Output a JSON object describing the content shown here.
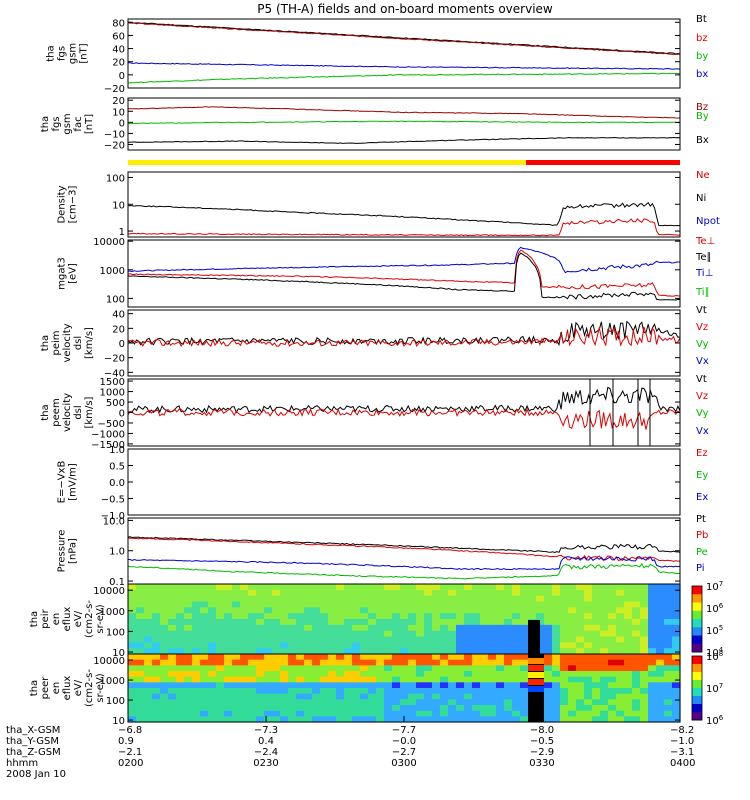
{
  "title": "P5 (TH-A) fields and on-board moments overview",
  "colors": {
    "black": "#000000",
    "red": "#dd0000",
    "blue": "#0000cc",
    "green": "#00bb00",
    "darkred": "#990000",
    "yellow": "#ffee00",
    "barred": "#ff0000"
  },
  "chart_data": [
    {
      "type": "line",
      "panel": "fgs_gsm",
      "ylabel": [
        "tha",
        "fgs",
        "gsm",
        "[nT]"
      ],
      "ylim": [
        -20,
        85
      ],
      "yticks": [
        -20,
        0,
        20,
        40,
        60,
        80
      ],
      "ytick_labels": [
        "−20",
        "0",
        "20",
        "40",
        "60",
        "80"
      ],
      "legend": [
        "Bt",
        "bz",
        "by",
        "bx"
      ],
      "series": [
        {
          "name": "Bt",
          "x": [
            0,
            1
          ],
          "y": [
            80,
            32
          ]
        },
        {
          "name": "bz",
          "x": [
            0,
            1
          ],
          "y": [
            79,
            31
          ]
        },
        {
          "name": "by",
          "x": [
            0,
            0.5,
            1
          ],
          "y": [
            18,
            12,
            9
          ]
        },
        {
          "name": "bx",
          "x": [
            0,
            0.2,
            0.5,
            1
          ],
          "y": [
            -12,
            -6,
            0,
            2
          ]
        }
      ]
    },
    {
      "type": "line",
      "panel": "fgs_gse_fac",
      "ylabel": [
        "tha",
        "fgs",
        "gsm",
        "fac",
        "[nT]"
      ],
      "ylim": [
        -25,
        22
      ],
      "yticks": [
        -20,
        -10,
        0,
        10,
        20
      ],
      "ytick_labels": [
        "−20",
        "−10",
        "0",
        "10",
        "20"
      ],
      "legend": [
        "Bz",
        "By",
        "Bx"
      ],
      "series": [
        {
          "name": "Bz",
          "x": [
            0,
            0.15,
            0.3,
            0.5,
            0.7,
            0.9,
            1
          ],
          "y": [
            12,
            14,
            12,
            9,
            8,
            5,
            4
          ]
        },
        {
          "name": "By",
          "x": [
            0,
            0.2,
            0.5,
            0.8,
            1
          ],
          "y": [
            -1,
            0,
            1,
            0,
            0
          ]
        },
        {
          "name": "Bx",
          "x": [
            0,
            0.2,
            0.4,
            0.6,
            0.8,
            1
          ],
          "y": [
            -18,
            -17,
            -19,
            -16,
            -14,
            -14
          ]
        }
      ]
    },
    {
      "type": "line",
      "panel": "density",
      "ylabel": [
        "Density",
        "[cm−3]"
      ],
      "scale": "log",
      "ylim": [
        0.6,
        160
      ],
      "yticks": [
        1,
        10,
        100
      ],
      "ytick_labels": [
        "1",
        "10",
        "100"
      ],
      "legend": [
        "Ne",
        "Ni",
        "Npot"
      ],
      "series": [
        {
          "name": "Ni",
          "x": [
            0,
            0.3,
            0.6,
            0.78,
            0.79,
            0.95,
            0.96,
            1
          ],
          "y": [
            9,
            5,
            2.6,
            1.6,
            8,
            10,
            1.6,
            1.6
          ]
        },
        {
          "name": "Ne",
          "x": [
            0,
            0.3,
            0.6,
            0.78,
            0.79,
            0.95,
            0.96,
            1
          ],
          "y": [
            0.8,
            0.75,
            0.7,
            0.7,
            2,
            2.6,
            0.75,
            0.7
          ]
        }
      ]
    },
    {
      "type": "line",
      "panel": "temperature",
      "ylabel": [
        "mgat3",
        "[eV]"
      ],
      "scale": "log",
      "ylim": [
        50,
        11000
      ],
      "yticks": [
        100,
        1000,
        10000
      ],
      "ytick_labels": [
        "100",
        "1000",
        "10000"
      ],
      "legend": [
        "Te⊥",
        "Te∥",
        "Ti⊥",
        "Ti∥"
      ],
      "series": [
        {
          "name": "Ti⊥",
          "x": [
            0,
            0.3,
            0.6,
            0.7,
            0.71,
            0.78,
            0.79,
            0.95,
            0.96,
            1
          ],
          "y": [
            900,
            1200,
            1500,
            1700,
            6000,
            2200,
            900,
            1500,
            1800,
            1800
          ]
        },
        {
          "name": "Te⊥",
          "x": [
            0,
            0.3,
            0.6,
            0.7,
            0.71,
            0.75,
            0.79,
            0.95,
            0.96,
            1
          ],
          "y": [
            700,
            600,
            400,
            350,
            5000,
            250,
            250,
            300,
            130,
            120
          ]
        },
        {
          "name": "Te∥",
          "x": [
            0,
            0.3,
            0.6,
            0.7,
            0.71,
            0.75,
            0.79,
            0.95,
            0.96,
            1
          ],
          "y": [
            600,
            400,
            200,
            180,
            4000,
            110,
            110,
            150,
            90,
            90
          ]
        }
      ]
    },
    {
      "type": "line",
      "panel": "peim_velocity",
      "ylabel": [
        "tha",
        "peim",
        "velocity",
        "dsl",
        "[km/s]"
      ],
      "ylim": [
        -45,
        45
      ],
      "yticks": [
        -40,
        -20,
        0,
        20,
        40
      ],
      "ytick_labels": [
        "−40",
        "−20",
        "0",
        "20",
        "40"
      ],
      "legend": [
        "Vt",
        "Vz",
        "Vy",
        "Vx"
      ],
      "series": [
        {
          "name": "Vt",
          "x": [
            0,
            0.5,
            0.78,
            0.8,
            0.95,
            1
          ],
          "y": [
            2,
            3,
            5,
            15,
            20,
            8
          ]
        },
        {
          "name": "Vz",
          "x": [
            0,
            0.5,
            0.78,
            0.8,
            0.95,
            1
          ],
          "y": [
            0,
            0,
            2,
            8,
            10,
            3
          ]
        }
      ]
    },
    {
      "type": "line",
      "panel": "peem_velocity",
      "ylabel": [
        "tha",
        "peem",
        "velocity",
        "dsl",
        "[km/s]"
      ],
      "ylim": [
        -1600,
        1600
      ],
      "yticks": [
        -1500,
        -1000,
        -500,
        0,
        500,
        1000,
        1500
      ],
      "ytick_labels": [
        "−1500",
        "−1000",
        "−500",
        "0",
        "500",
        "1000",
        "1500"
      ],
      "legend": [
        "Vt",
        "Vz",
        "Vy",
        "Vx"
      ],
      "series": [
        {
          "name": "Vt",
          "x": [
            0,
            0.78,
            0.79,
            0.95,
            0.96,
            1
          ],
          "y": [
            150,
            200,
            700,
            800,
            200,
            200
          ]
        },
        {
          "name": "Vz",
          "x": [
            0,
            0.78,
            0.79,
            0.95,
            0.96,
            1
          ],
          "y": [
            0,
            0,
            -300,
            -400,
            0,
            0
          ]
        }
      ]
    },
    {
      "type": "line",
      "panel": "efield",
      "ylabel": [
        "E=−VxB",
        "[mV/m]"
      ],
      "ylim": [
        -1,
        1
      ],
      "yticks": [
        -1,
        -0.5,
        0,
        0.5,
        1
      ],
      "ytick_labels": [
        "−1.0",
        "−0.5",
        "0.0",
        "0.5",
        "1.0"
      ],
      "legend": [
        "Ez",
        "Ey",
        "Ex"
      ],
      "series": []
    },
    {
      "type": "line",
      "panel": "pressure",
      "ylabel": [
        "Pressure",
        "[nPa]"
      ],
      "scale": "log",
      "ylim": [
        0.08,
        12
      ],
      "yticks": [
        0.1,
        1,
        10
      ],
      "ytick_labels": [
        "0.1",
        "1.0",
        "10.0"
      ],
      "legend": [
        "Pt",
        "Pb",
        "Pe",
        "Pi"
      ],
      "series": [
        {
          "name": "Pt",
          "x": [
            0,
            0.3,
            0.6,
            0.78,
            0.79,
            0.95,
            0.96,
            1
          ],
          "y": [
            2.8,
            1.9,
            1.2,
            0.9,
            1.3,
            1.4,
            1.0,
            0.9
          ]
        },
        {
          "name": "Pb",
          "x": [
            0,
            0.3,
            0.6,
            0.78,
            0.79,
            0.95,
            0.96,
            1
          ],
          "y": [
            2.6,
            1.7,
            1.0,
            0.62,
            0.6,
            0.55,
            0.5,
            0.45
          ]
        },
        {
          "name": "Pi",
          "x": [
            0,
            0.3,
            0.6,
            0.78,
            0.79,
            0.95,
            0.96,
            1
          ],
          "y": [
            0.5,
            0.4,
            0.25,
            0.25,
            0.55,
            0.55,
            0.3,
            0.3
          ]
        },
        {
          "name": "Pe",
          "x": [
            0,
            0.2,
            0.4,
            0.6,
            0.78,
            0.79,
            0.95,
            0.96,
            1
          ],
          "y": [
            0.3,
            0.2,
            0.15,
            0.12,
            0.15,
            0.3,
            0.32,
            0.2,
            0.18
          ]
        }
      ]
    },
    {
      "type": "heatmap",
      "panel": "peir_eflux",
      "ylabel": [
        "tha",
        "peir",
        "en",
        "eflux",
        "eV/",
        "(cm2-s-",
        "sr-eV)"
      ],
      "scale": "log",
      "ylim": [
        8,
        20000
      ],
      "yticks": [
        10,
        100,
        1000,
        10000
      ],
      "ytick_labels": [
        "10",
        "100",
        "1000",
        "10000"
      ],
      "colorbar": {
        "labels": [
          "10^4",
          "10^5",
          "10^6",
          "10^7"
        ],
        "scale": "log"
      }
    },
    {
      "type": "heatmap",
      "panel": "peer_eflux",
      "ylabel": [
        "tha",
        "peer",
        "en",
        "eflux",
        "eV/",
        "(cm2-s-",
        "sr-eV)"
      ],
      "scale": "log",
      "ylim": [
        8,
        20000
      ],
      "yticks": [
        10,
        100,
        1000,
        10000
      ],
      "ytick_labels": [
        "10",
        "100",
        "1000",
        "10000"
      ],
      "colorbar": {
        "labels": [
          "10^6",
          "10^7",
          "10^8"
        ],
        "scale": "log"
      }
    }
  ],
  "footer": {
    "labels": [
      "tha_X-GSM",
      "tha_Y-GSM",
      "tha_Z-GSM",
      "hhmm",
      "2008 Jan 10"
    ],
    "ticks": [
      {
        "x_gsm": "−6.8",
        "y_gsm": "0.9",
        "z_gsm": "−2.1",
        "time": "0200"
      },
      {
        "x_gsm": "−7.3",
        "y_gsm": "0.4",
        "z_gsm": "−2.4",
        "time": "0230"
      },
      {
        "x_gsm": "−7.7",
        "y_gsm": "−0.0",
        "z_gsm": "−2.7",
        "time": "0300"
      },
      {
        "x_gsm": "−8.0",
        "y_gsm": "−0.5",
        "z_gsm": "−2.9",
        "time": "0330"
      },
      {
        "x_gsm": "−8.2",
        "y_gsm": "−1.0",
        "z_gsm": "−3.1",
        "time": "0400"
      }
    ]
  }
}
